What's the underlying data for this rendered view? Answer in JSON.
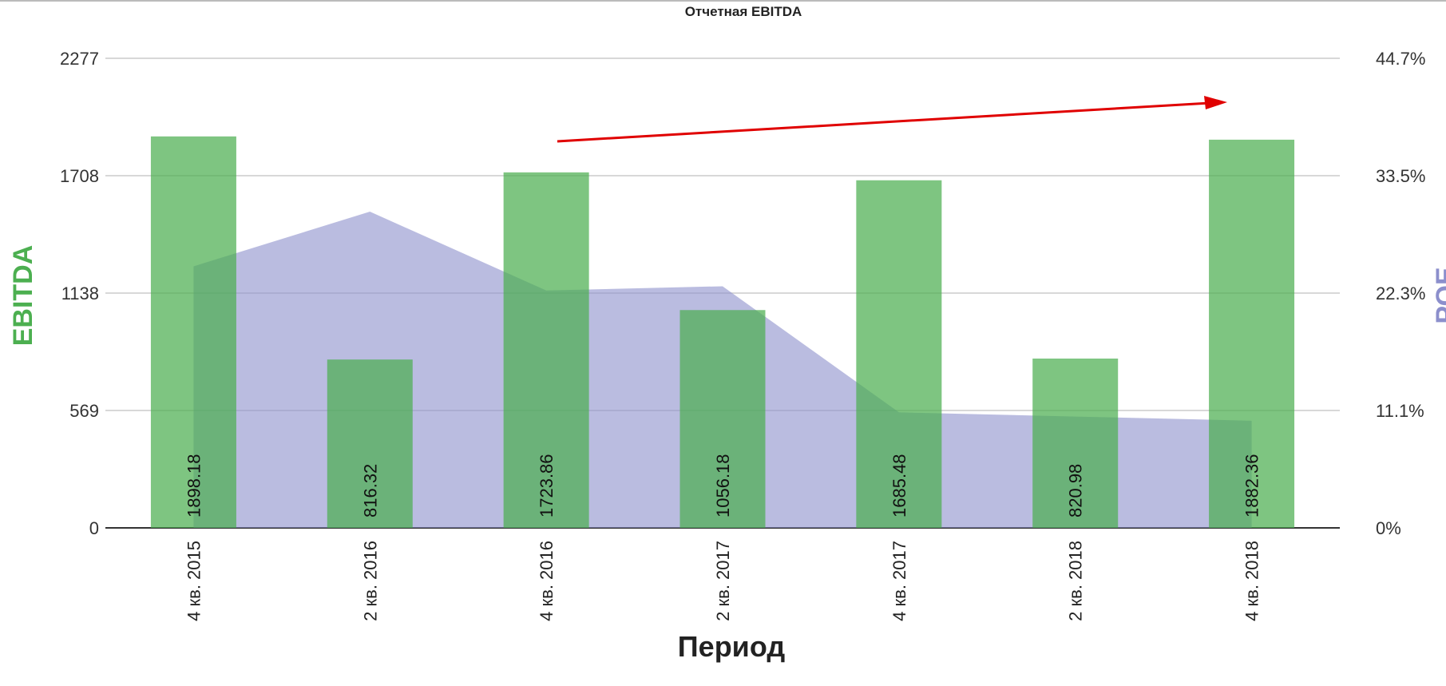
{
  "chart_data": {
    "type": "bar",
    "title": "Отчетная EBITDA",
    "xlabel": "Период",
    "ylabel": "EBITDA",
    "y2label": "РОЕ",
    "categories": [
      "4 кв. 2015",
      "2 кв. 2016",
      "4 кв. 2016",
      "2 кв. 2017",
      "4 кв. 2017",
      "2 кв. 2018",
      "4 кв. 2018"
    ],
    "ylim": [
      0,
      2277
    ],
    "yticks": [
      "0",
      "569",
      "1138",
      "1708",
      "2277"
    ],
    "y2lim": [
      0,
      44.7
    ],
    "y2ticks": [
      "0%",
      "11.1%",
      "22.3%",
      "33.5%",
      "44.7%"
    ],
    "grid": true,
    "series": [
      {
        "name": "EBITDA",
        "type": "bar",
        "color": "#4caf50",
        "values": [
          1898.18,
          816.32,
          1723.86,
          1056.18,
          1685.48,
          820.98,
          1882.36
        ],
        "labels": [
          "1898.18",
          "816.32",
          "1723.86",
          "1056.18",
          "1685.48",
          "820.98",
          "1882.36"
        ]
      },
      {
        "name": "РОЕ",
        "type": "area",
        "axis": "right",
        "color": "#8c8fcc",
        "values": [
          24.9,
          30.1,
          22.6,
          23.0,
          11.0,
          10.6,
          10.2
        ]
      }
    ],
    "annotations": [
      {
        "type": "arrow",
        "color": "#e00000",
        "description_trend": "up"
      }
    ]
  }
}
